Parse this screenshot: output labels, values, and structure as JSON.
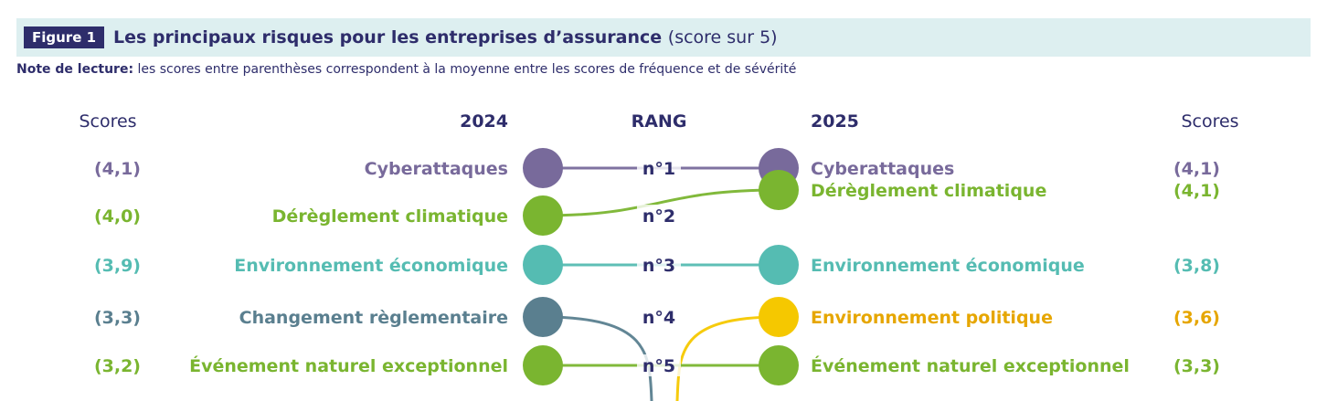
{
  "figure": {
    "tag": "Figure 1",
    "title": "Les principaux risques pour les entreprises d’assurance",
    "subtitle": "(score sur 5)",
    "note_lead": "Note de lecture:",
    "note_text": "les scores entre parenthèses correspondent à la moyenne entre les scores de fréquence et de sévérité"
  },
  "headers": {
    "scores_left": "Scores",
    "year_left": "2024",
    "rank": "RANG",
    "year_right": "2025",
    "scores_right": "Scores"
  },
  "colors": {
    "cyber": "#786a9b",
    "climat": "#7ab530",
    "eco": "#55bcb2",
    "regl": "#5a7f8f",
    "naturel": "#7ab530",
    "politique": "#f5c800",
    "politique_text": "#e6a600",
    "navy": "#2e2d6b"
  },
  "chart_data": {
    "type": "ranking",
    "ranks": [
      "n°1",
      "n°2",
      "n°3",
      "n°4",
      "n°5"
    ],
    "left": [
      {
        "rank": 1,
        "label": "Cyberattaques",
        "score": "(4,1)",
        "color": "cyber"
      },
      {
        "rank": 2,
        "label": "Dérèglement climatique",
        "score": "(4,0)",
        "color": "climat"
      },
      {
        "rank": 3,
        "label": "Environnement économique",
        "score": "(3,9)",
        "color": "eco"
      },
      {
        "rank": 4,
        "label": "Changement règlementaire",
        "score": "(3,3)",
        "color": "regl"
      },
      {
        "rank": 5,
        "label": "Événement naturel exceptionnel",
        "score": "(3,2)",
        "color": "naturel"
      }
    ],
    "right": [
      {
        "rank": 1,
        "label": "Cyberattaques",
        "score": "(4,1)",
        "color": "cyber"
      },
      {
        "rank": 1,
        "label": "Dérèglement climatique",
        "score": "(4,1)",
        "color": "climat"
      },
      {
        "rank": 3,
        "label": "Environnement économique",
        "score": "(3,8)",
        "color": "eco"
      },
      {
        "rank": 4,
        "label": "Environnement politique",
        "score": "(3,6)",
        "color": "politique"
      },
      {
        "rank": 5,
        "label": "Événement naturel exceptionnel",
        "score": "(3,3)",
        "color": "naturel"
      }
    ],
    "links": [
      {
        "from": 1,
        "to": 1,
        "color": "cyber"
      },
      {
        "from": 2,
        "to": 1,
        "color": "climat"
      },
      {
        "from": 3,
        "to": 3,
        "color": "eco"
      },
      {
        "from": 4,
        "to": null,
        "color": "regl"
      },
      {
        "from": null,
        "to": 4,
        "color": "politique"
      },
      {
        "from": 5,
        "to": 5,
        "color": "naturel"
      }
    ]
  }
}
